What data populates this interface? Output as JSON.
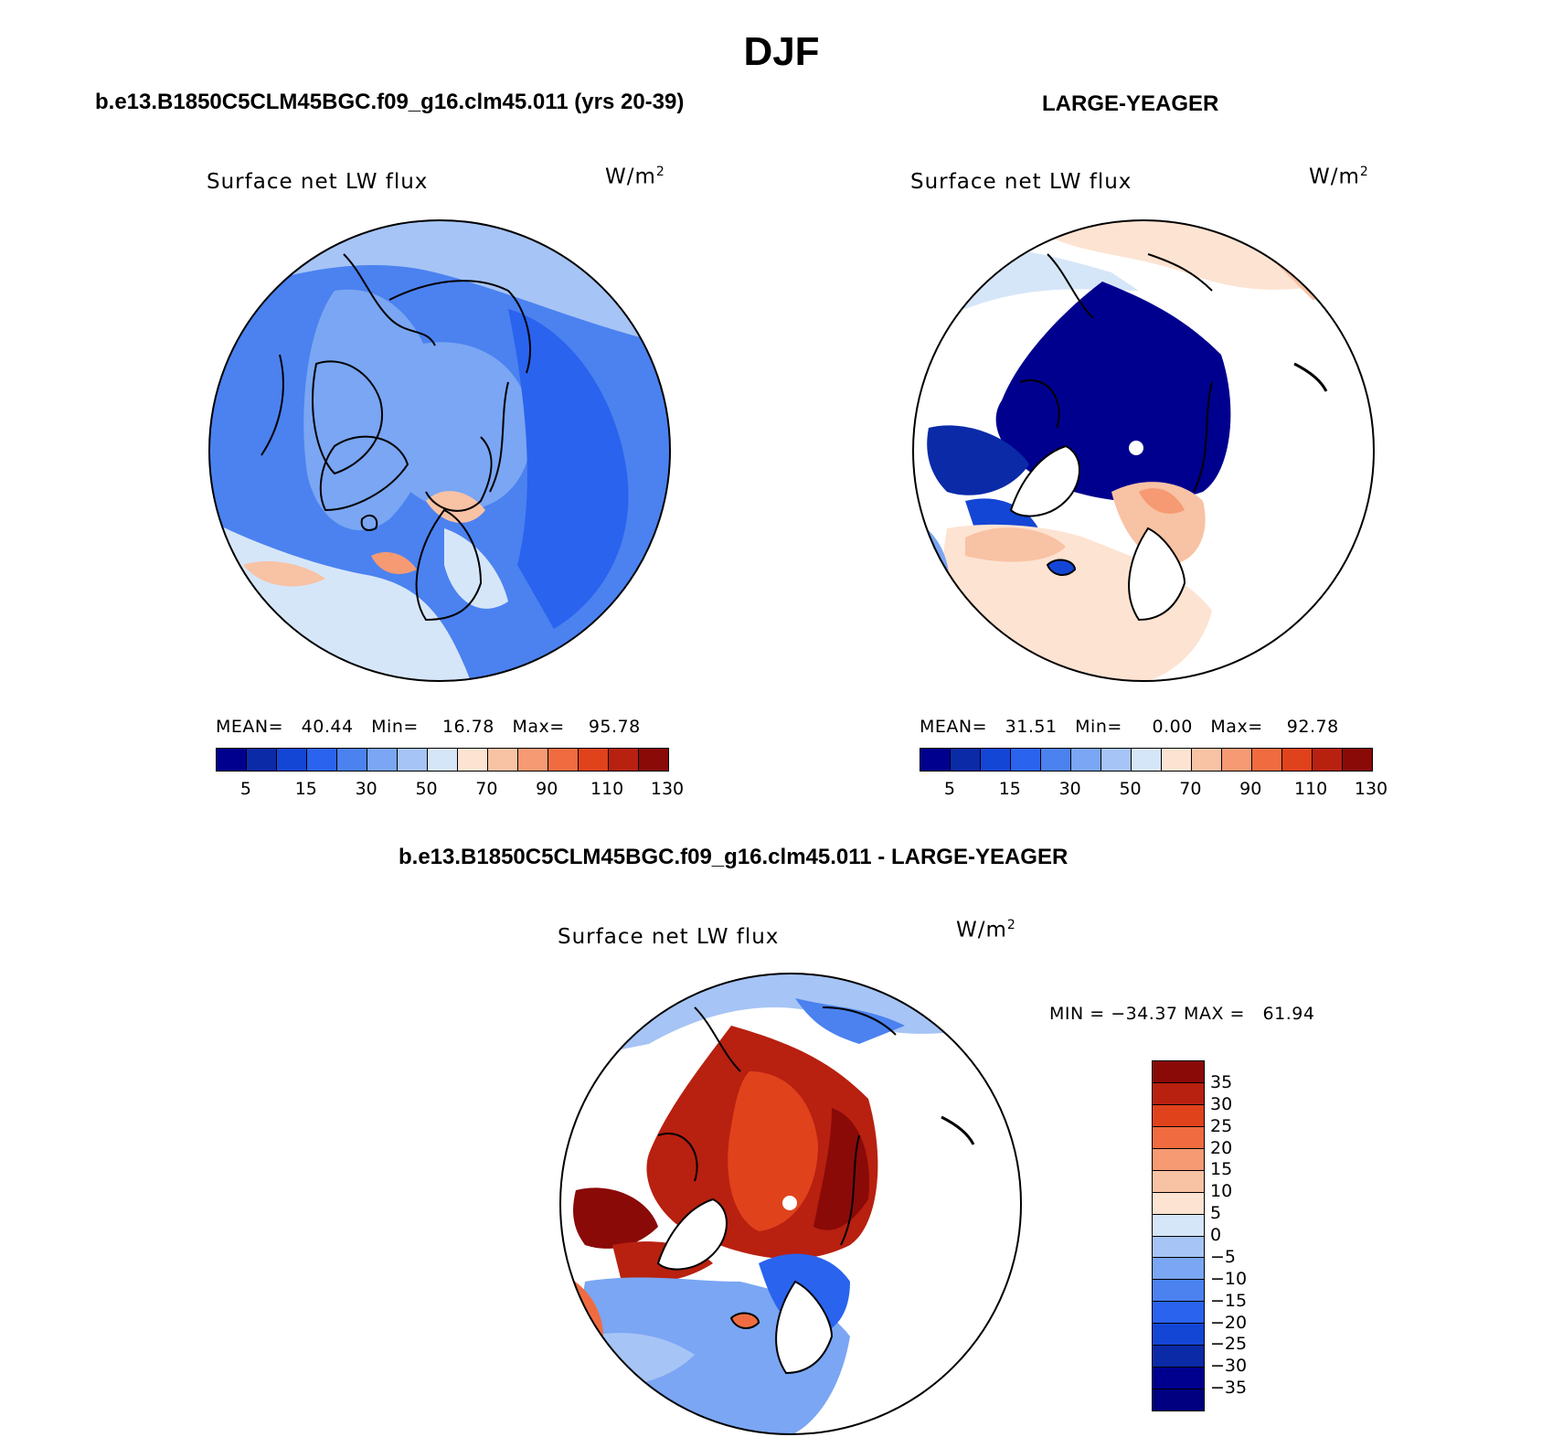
{
  "main_title": "DJF",
  "panels": [
    {
      "title": "b.e13.B1850C5CLM45BGC.f09_g16.clm45.011 (yrs 20-39)",
      "plot_label": "Surface net LW flux",
      "unit": "W/m",
      "unit_sup": "2",
      "stats": "MEAN=   40.44   Min=    16.78   Max=    95.78",
      "colorbar_ticks": [
        "5",
        "15",
        "30",
        "50",
        "70",
        "90",
        "110",
        "130"
      ]
    },
    {
      "title": "LARGE-YEAGER",
      "plot_label": "Surface net LW flux",
      "unit": "W/m",
      "unit_sup": "2",
      "stats": "MEAN=   31.51   Min=     0.00   Max=    92.78",
      "colorbar_ticks": [
        "5",
        "15",
        "30",
        "50",
        "70",
        "90",
        "110",
        "130"
      ]
    }
  ],
  "diff_panel": {
    "title": "b.e13.B1850C5CLM45BGC.f09_g16.clm45.011 - LARGE-YEAGER",
    "plot_label": "Surface net LW flux",
    "unit": "W/m",
    "unit_sup": "2",
    "minmax": "MIN = −34.37 MAX =   61.94",
    "colorbar_ticks": [
      "35",
      "30",
      "25",
      "20",
      "15",
      "10",
      "5",
      "0",
      "−5",
      "−10",
      "−15",
      "−20",
      "−25",
      "−30",
      "−35"
    ]
  },
  "abs_colors": [
    "#00008f",
    "#0a2aa8",
    "#1446d6",
    "#2a63ee",
    "#4b82f0",
    "#7aa6f3",
    "#a6c4f5",
    "#d6e6f9",
    "#fde3d2",
    "#f8c2a4",
    "#f59a72",
    "#f06c40",
    "#e0421c",
    "#b82010",
    "#8a0a08"
  ],
  "diff_colors": [
    "#8a0a08",
    "#b82010",
    "#e0421c",
    "#f06c40",
    "#f59a72",
    "#f8c2a4",
    "#fde3d2",
    "#d6e6f9",
    "#a6c4f5",
    "#7aa6f3",
    "#4b82f0",
    "#2a63ee",
    "#1446d6",
    "#0a2aa8",
    "#00008f",
    "#000080"
  ]
}
